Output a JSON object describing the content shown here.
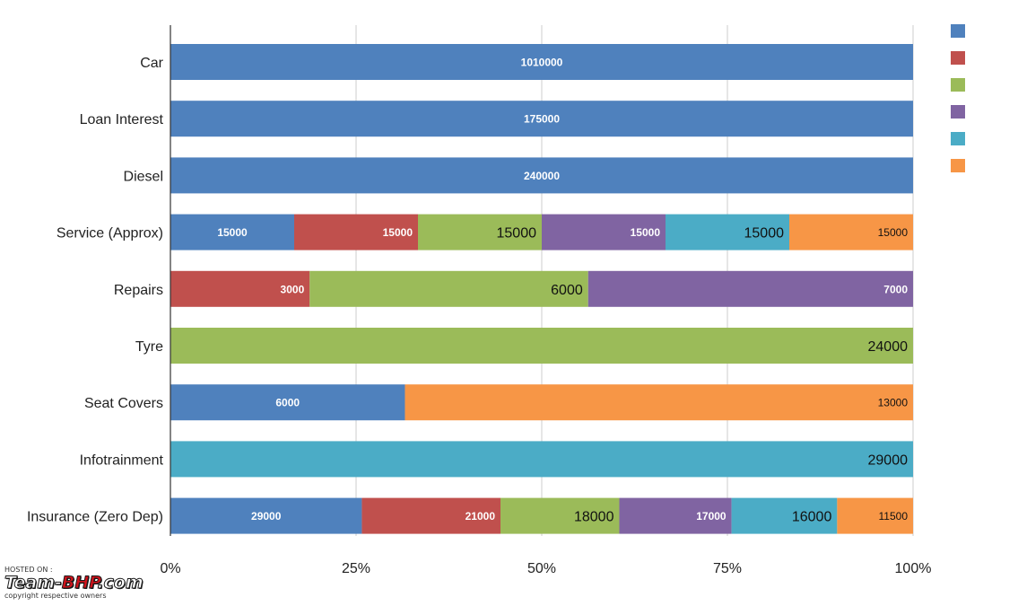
{
  "watermark": {
    "line1": "HOSTED ON :",
    "brand_left": "Team-",
    "brand_mid": "BHP",
    "brand_right": ".com",
    "line3": "copyright respective owners"
  },
  "chart_data": {
    "type": "bar",
    "orientation": "horizontal",
    "stacked": "percent",
    "title": "",
    "xlabel": "",
    "ylabel": "",
    "x_ticks": [
      "0%",
      "25%",
      "50%",
      "75%",
      "100%"
    ],
    "xlim": [
      0,
      100
    ],
    "grid": true,
    "legend": {
      "placement": "top-right",
      "entries": [
        {
          "name": "",
          "color": "#4f81bd"
        },
        {
          "name": "",
          "color": "#c0504d"
        },
        {
          "name": "",
          "color": "#9bbb59"
        },
        {
          "name": "",
          "color": "#8064a2"
        },
        {
          "name": "",
          "color": "#4bacc6"
        },
        {
          "name": "",
          "color": "#f79646"
        }
      ]
    },
    "categories": [
      "Car",
      "Loan Interest",
      "Diesel",
      "Service (Approx)",
      "Repairs",
      "Tyre",
      "Seat Covers",
      "Infotrainment",
      "Insurance (Zero Dep)"
    ],
    "series": [
      {
        "color": "#4f81bd",
        "values": [
          1010000,
          175000,
          240000,
          15000,
          null,
          null,
          6000,
          null,
          29000
        ]
      },
      {
        "color": "#c0504d",
        "values": [
          null,
          null,
          null,
          15000,
          3000,
          null,
          null,
          null,
          21000
        ]
      },
      {
        "color": "#9bbb59",
        "values": [
          null,
          null,
          null,
          15000,
          6000,
          24000,
          null,
          null,
          18000
        ]
      },
      {
        "color": "#8064a2",
        "values": [
          null,
          null,
          null,
          15000,
          7000,
          null,
          null,
          null,
          17000
        ]
      },
      {
        "color": "#4bacc6",
        "values": [
          null,
          null,
          null,
          15000,
          null,
          null,
          null,
          29000,
          16000
        ]
      },
      {
        "color": "#f79646",
        "values": [
          null,
          null,
          null,
          15000,
          null,
          null,
          13000,
          null,
          11500
        ]
      }
    ]
  }
}
